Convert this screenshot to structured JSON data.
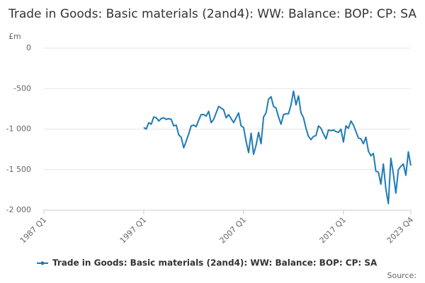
{
  "chart_data": {
    "type": "line",
    "title": "Trade in Goods: Basic materials (2and4): WW: Balance: BOP: CP: SA",
    "y_label": "£m",
    "source": "Source:",
    "x": [
      1997,
      1997.25,
      1997.5,
      1997.75,
      1998,
      1998.25,
      1998.5,
      1998.75,
      1999,
      1999.25,
      1999.5,
      1999.75,
      2000,
      2000.25,
      2000.5,
      2000.75,
      2001,
      2001.25,
      2001.5,
      2001.75,
      2002,
      2002.25,
      2002.5,
      2002.75,
      2003,
      2003.25,
      2003.5,
      2003.75,
      2004,
      2004.25,
      2004.5,
      2004.75,
      2005,
      2005.25,
      2005.5,
      2005.75,
      2006,
      2006.25,
      2006.5,
      2006.75,
      2007,
      2007.25,
      2007.5,
      2007.75,
      2008,
      2008.25,
      2008.5,
      2008.75,
      2009,
      2009.25,
      2009.5,
      2009.75,
      2010,
      2010.25,
      2010.5,
      2010.75,
      2011,
      2011.25,
      2011.5,
      2011.75,
      2012,
      2012.25,
      2012.5,
      2012.75,
      2013,
      2013.25,
      2013.5,
      2013.75,
      2014,
      2014.25,
      2014.5,
      2014.75,
      2015,
      2015.25,
      2015.5,
      2015.75,
      2016,
      2016.25,
      2016.5,
      2016.75,
      2017,
      2017.25,
      2017.5,
      2017.75,
      2018,
      2018.25,
      2018.5,
      2018.75,
      2019,
      2019.25,
      2019.5,
      2019.75,
      2020,
      2020.25,
      2020.5,
      2020.75,
      2021,
      2021.25,
      2021.5,
      2021.75,
      2022,
      2022.25,
      2022.5,
      2022.75,
      2023,
      2023.25,
      2023.5,
      2023.75
    ],
    "series": [
      {
        "name": "Trade in Goods: Basic materials (2and4): WW: Balance: BOP: CP: SA",
        "color": "#1f7bb6",
        "values": [
          -980,
          -1000,
          -920,
          -940,
          -850,
          -860,
          -900,
          -870,
          -860,
          -880,
          -870,
          -880,
          -960,
          -950,
          -1070,
          -1100,
          -1230,
          -1150,
          -1060,
          -960,
          -950,
          -970,
          -890,
          -820,
          -820,
          -840,
          -780,
          -920,
          -880,
          -800,
          -720,
          -740,
          -760,
          -860,
          -820,
          -870,
          -920,
          -860,
          -800,
          -960,
          -980,
          -1150,
          -1290,
          -1050,
          -1310,
          -1200,
          -1040,
          -1180,
          -850,
          -800,
          -630,
          -600,
          -720,
          -740,
          -850,
          -940,
          -820,
          -810,
          -810,
          -700,
          -530,
          -700,
          -590,
          -800,
          -860,
          -990,
          -1090,
          -1130,
          -1090,
          -1080,
          -960,
          -990,
          -1060,
          -1120,
          -1010,
          -1020,
          -1010,
          -1030,
          -1040,
          -1000,
          -1160,
          -960,
          -990,
          -900,
          -950,
          -1030,
          -1110,
          -1120,
          -1180,
          -1100,
          -1270,
          -1330,
          -1300,
          -1520,
          -1530,
          -1680,
          -1430,
          -1740,
          -1920,
          -1360,
          -1550,
          -1790,
          -1500,
          -1460,
          -1430,
          -1570,
          -1280,
          -1450
        ]
      }
    ],
    "xlim": [
      1987,
      2023.75
    ],
    "xticks": [
      {
        "value": 1987,
        "label": "1987 Q1"
      },
      {
        "value": 1997,
        "label": "1997 Q1"
      },
      {
        "value": 2007,
        "label": "2007 Q1"
      },
      {
        "value": 2017,
        "label": "2017 Q1"
      },
      {
        "value": 2023.75,
        "label": "2023 Q4"
      }
    ],
    "ylim": [
      -2000,
      0
    ],
    "yticks": [
      {
        "value": -2000,
        "label": "-2 000"
      },
      {
        "value": -1500,
        "label": "-1 500"
      },
      {
        "value": -1000,
        "label": "-1 000"
      },
      -500,
      0
    ],
    "grid": true
  }
}
